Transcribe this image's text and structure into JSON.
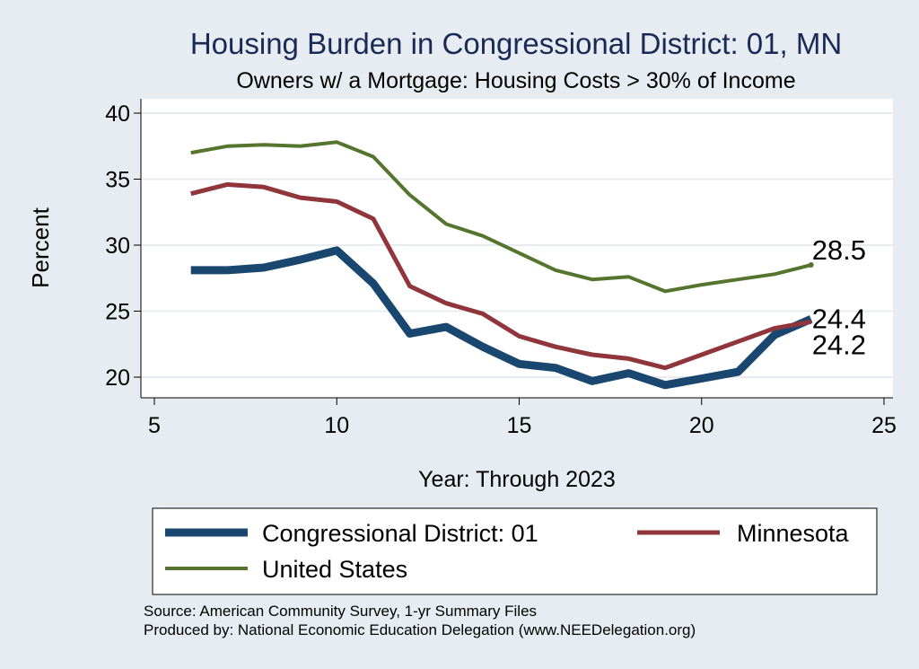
{
  "chart_data": {
    "type": "line",
    "title": "Housing Burden in Congressional District:  01, MN",
    "subtitle": "Owners w/ a Mortgage: Housing Costs > 30% of Income",
    "xlabel": "Year: Through 2023",
    "ylabel": "Percent",
    "xlim": [
      5,
      25
    ],
    "ylim": [
      19,
      41
    ],
    "x_ticks": [
      5,
      10,
      15,
      20,
      25
    ],
    "y_ticks": [
      20,
      25,
      30,
      35,
      40
    ],
    "grid": true,
    "legend_position": "bottom",
    "x": [
      6,
      7,
      8,
      9,
      10,
      11,
      12,
      13,
      14,
      15,
      16,
      17,
      18,
      19,
      20,
      21,
      22,
      23
    ],
    "series": [
      {
        "name": "Congressional District:  01",
        "color": "#1a476f",
        "values": [
          28.1,
          28.1,
          28.3,
          28.9,
          29.6,
          27.1,
          23.3,
          23.8,
          22.3,
          21.0,
          20.7,
          19.7,
          20.3,
          19.4,
          19.9,
          20.4,
          23.2,
          24.4
        ],
        "end_label": "24.4"
      },
      {
        "name": "Minnesota",
        "color": "#90353b",
        "values": [
          33.9,
          34.6,
          34.4,
          33.6,
          33.3,
          32.0,
          26.9,
          25.6,
          24.8,
          23.1,
          22.3,
          21.7,
          21.4,
          20.7,
          21.7,
          22.7,
          23.7,
          24.2
        ],
        "end_label": "24.2"
      },
      {
        "name": "United States",
        "color": "#55752f",
        "values": [
          37.0,
          37.5,
          37.6,
          37.5,
          37.8,
          36.7,
          33.8,
          31.6,
          30.7,
          29.4,
          28.1,
          27.4,
          27.6,
          26.5,
          27.0,
          27.4,
          27.8,
          28.5
        ],
        "end_label": "28.5"
      }
    ]
  },
  "footer": {
    "source": "Source: American Community Survey, 1-yr Summary Files",
    "produced": "Produced by: National Economic Education Delegation (www.NEEDelegation.org)"
  }
}
